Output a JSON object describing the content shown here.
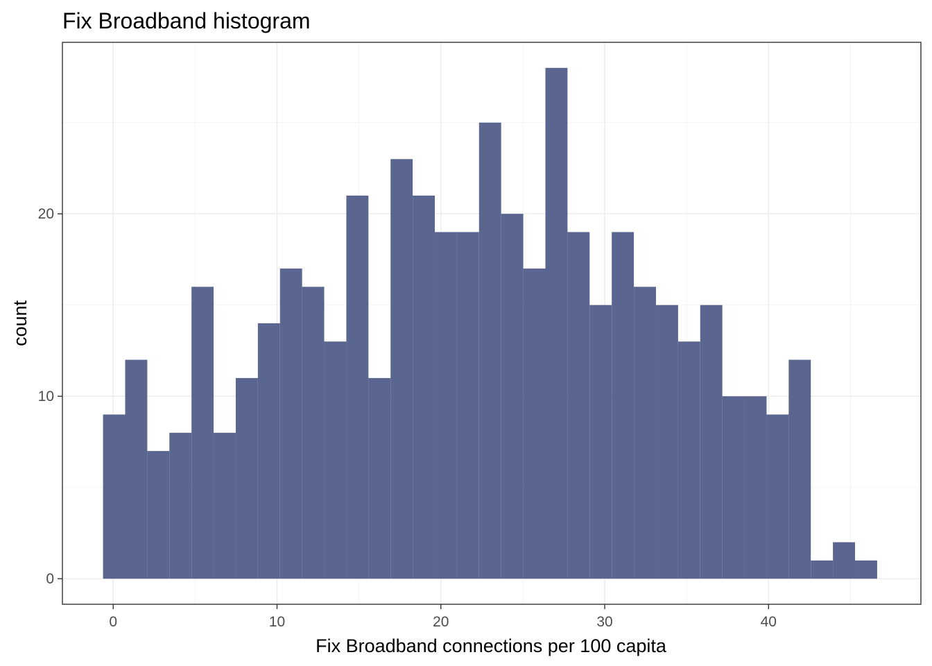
{
  "chart_data": {
    "type": "bar",
    "title": "Fix Broadband histogram",
    "xlabel": "Fix Broadband connections per 100 capita",
    "ylabel": "count",
    "xlim": [
      -3.1,
      49.3
    ],
    "ylim": [
      -1.4,
      29.4
    ],
    "x_ticks": [
      0,
      10,
      20,
      30,
      40
    ],
    "y_ticks": [
      0,
      10,
      20
    ],
    "x_tick_labels": [
      "0",
      "10",
      "20",
      "30",
      "40"
    ],
    "y_tick_labels": [
      "0",
      "10",
      "20"
    ],
    "grid": true,
    "bin_width": 1.35,
    "bin_edges": [
      -0.62,
      0.73,
      2.08,
      3.43,
      4.78,
      6.13,
      7.48,
      8.83,
      10.18,
      11.53,
      12.88,
      14.23,
      15.58,
      16.93,
      18.28,
      19.63,
      20.98,
      22.33,
      23.68,
      25.03,
      26.38,
      27.73,
      29.08,
      30.43,
      31.78,
      33.13,
      34.48,
      35.83,
      37.18,
      38.53,
      39.88,
      41.23,
      42.58,
      43.93,
      45.28,
      46.63
    ],
    "values": [
      9,
      12,
      7,
      8,
      16,
      8,
      11,
      14,
      17,
      16,
      13,
      21,
      11,
      23,
      21,
      19,
      19,
      25,
      20,
      17,
      28,
      19,
      15,
      19,
      16,
      15,
      13,
      15,
      10,
      10,
      9,
      12,
      1,
      2,
      1
    ],
    "colors": {
      "bar_fill": "#5b6690",
      "background": "#ffffff",
      "panel_border": "#333333",
      "grid": "#ebebeb"
    }
  }
}
